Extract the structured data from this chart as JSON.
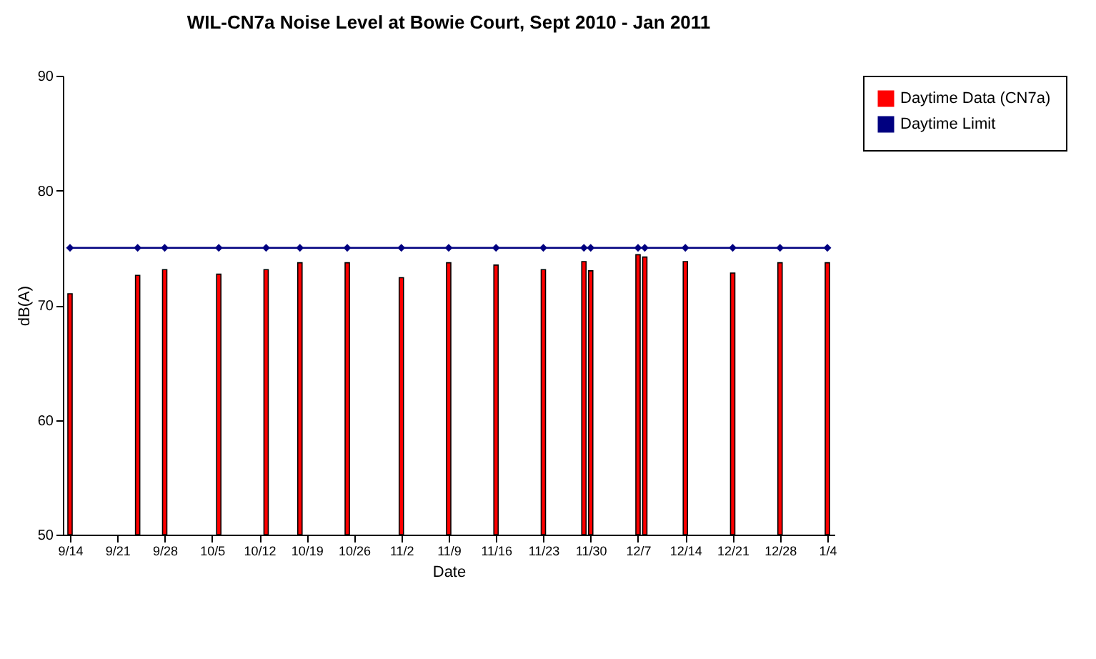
{
  "chart_data": {
    "type": "bar",
    "title": "WIL-CN7a Noise Level at Bowie Court, Sept 2010 - Jan 2011",
    "xlabel": "Date",
    "ylabel": "dB(A)",
    "x": [
      "2010-09-14",
      "2010-09-24",
      "2010-09-28",
      "2010-10-06",
      "2010-10-13",
      "2010-10-18",
      "2010-10-25",
      "2010-11-02",
      "2010-11-09",
      "2010-11-16",
      "2010-11-23",
      "2010-11-29",
      "2010-11-30",
      "2010-12-07",
      "2010-12-08",
      "2010-12-14",
      "2010-12-21",
      "2010-12-28",
      "2011-01-04"
    ],
    "series": [
      {
        "name": "Daytime Data (CN7a)",
        "color": "#ff0000",
        "values": [
          71.0,
          72.6,
          73.1,
          72.7,
          73.1,
          73.7,
          73.7,
          72.4,
          73.7,
          73.5,
          73.1,
          73.8,
          73.0,
          74.4,
          74.2,
          73.8,
          72.8,
          73.7,
          73.7
        ]
      },
      {
        "name": "Daytime Limit",
        "type": "line",
        "color": "#000080",
        "marker": "diamond",
        "values": [
          75,
          75,
          75,
          75,
          75,
          75,
          75,
          75,
          75,
          75,
          75,
          75,
          75,
          75,
          75,
          75,
          75,
          75,
          75
        ]
      }
    ],
    "xlim": [
      "2010-09-14",
      "2011-01-04"
    ],
    "xticks": [
      {
        "value": "2010-09-14",
        "label": "9/14"
      },
      {
        "value": "2010-09-21",
        "label": "9/21"
      },
      {
        "value": "2010-09-28",
        "label": "9/28"
      },
      {
        "value": "2010-10-05",
        "label": "10/5"
      },
      {
        "value": "2010-10-12",
        "label": "10/12"
      },
      {
        "value": "2010-10-19",
        "label": "10/19"
      },
      {
        "value": "2010-10-26",
        "label": "10/26"
      },
      {
        "value": "2010-11-02",
        "label": "11/2"
      },
      {
        "value": "2010-11-09",
        "label": "11/9"
      },
      {
        "value": "2010-11-16",
        "label": "11/16"
      },
      {
        "value": "2010-11-23",
        "label": "11/23"
      },
      {
        "value": "2010-11-30",
        "label": "11/30"
      },
      {
        "value": "2010-12-07",
        "label": "12/7"
      },
      {
        "value": "2010-12-14",
        "label": "12/14"
      },
      {
        "value": "2010-12-21",
        "label": "12/21"
      },
      {
        "value": "2010-12-28",
        "label": "12/28"
      },
      {
        "value": "2011-01-04",
        "label": "1/4"
      }
    ],
    "ylim": [
      50,
      90
    ],
    "yticks": [
      50,
      60,
      70,
      80,
      90
    ],
    "grid": false,
    "legend": "right"
  }
}
